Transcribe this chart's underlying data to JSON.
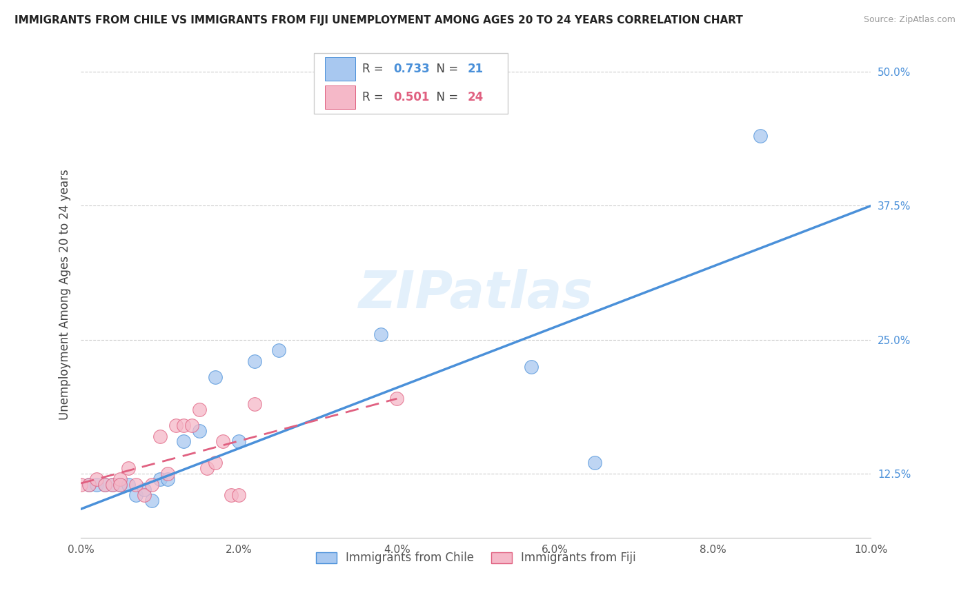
{
  "title": "IMMIGRANTS FROM CHILE VS IMMIGRANTS FROM FIJI UNEMPLOYMENT AMONG AGES 20 TO 24 YEARS CORRELATION CHART",
  "source": "Source: ZipAtlas.com",
  "ylabel": "Unemployment Among Ages 20 to 24 years",
  "xlim": [
    0.0,
    0.1
  ],
  "ylim": [
    0.065,
    0.52
  ],
  "yticks_right": [
    0.125,
    0.25,
    0.375,
    0.5
  ],
  "ytick_labels_right": [
    "12.5%",
    "25.0%",
    "37.5%",
    "50.0%"
  ],
  "xticks": [
    0.0,
    0.02,
    0.04,
    0.06,
    0.08,
    0.1
  ],
  "xtick_labels": [
    "0.0%",
    "2.0%",
    "4.0%",
    "6.0%",
    "8.0%",
    "10.0%"
  ],
  "chile_R": 0.733,
  "chile_N": 21,
  "fiji_R": 0.501,
  "fiji_N": 24,
  "chile_color": "#a8c8f0",
  "fiji_color": "#f5b8c8",
  "chile_line_color": "#4a90d9",
  "fiji_line_color": "#e06080",
  "watermark": "ZIPatlas",
  "chile_x": [
    0.001,
    0.002,
    0.003,
    0.004,
    0.005,
    0.006,
    0.007,
    0.008,
    0.009,
    0.01,
    0.011,
    0.013,
    0.015,
    0.017,
    0.02,
    0.022,
    0.025,
    0.038,
    0.057,
    0.065,
    0.086
  ],
  "chile_y": [
    0.115,
    0.115,
    0.115,
    0.115,
    0.115,
    0.115,
    0.105,
    0.11,
    0.1,
    0.12,
    0.12,
    0.155,
    0.165,
    0.215,
    0.155,
    0.23,
    0.24,
    0.255,
    0.225,
    0.135,
    0.44
  ],
  "fiji_x": [
    0.0,
    0.001,
    0.002,
    0.003,
    0.004,
    0.005,
    0.005,
    0.006,
    0.007,
    0.008,
    0.009,
    0.01,
    0.011,
    0.012,
    0.013,
    0.014,
    0.015,
    0.016,
    0.017,
    0.018,
    0.019,
    0.02,
    0.022,
    0.04
  ],
  "fiji_y": [
    0.115,
    0.115,
    0.12,
    0.115,
    0.115,
    0.12,
    0.115,
    0.13,
    0.115,
    0.105,
    0.115,
    0.16,
    0.125,
    0.17,
    0.17,
    0.17,
    0.185,
    0.13,
    0.135,
    0.155,
    0.105,
    0.105,
    0.19,
    0.195
  ],
  "chile_line_x0": 0.0,
  "chile_line_y0": 0.092,
  "chile_line_x1": 0.1,
  "chile_line_y1": 0.375,
  "fiji_line_x0": 0.0,
  "fiji_line_y0": 0.116,
  "fiji_line_x1": 0.04,
  "fiji_line_y1": 0.195
}
